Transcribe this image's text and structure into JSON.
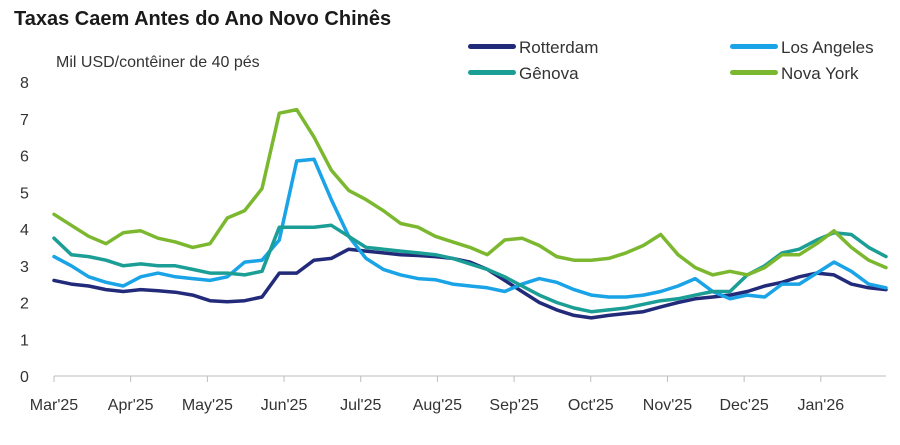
{
  "chart_data": {
    "type": "line",
    "title": "Taxas Caem Antes do Ano Novo Chinês",
    "ylabel": "Mil USD/contêiner de 40 pés",
    "xlabel": "",
    "ylim": [
      0,
      8
    ],
    "yticks": [
      "0",
      "1",
      "2",
      "3",
      "4",
      "5",
      "6",
      "7",
      "8"
    ],
    "xticks": [
      "Mar'25",
      "Apr'25",
      "May'25",
      "Jun'25",
      "Jul'25",
      "Aug'25",
      "Sep'25",
      "Oct'25",
      "Nov'25",
      "Dec'25",
      "Jan'26"
    ],
    "legend_position": "top-right",
    "x": [
      0,
      1,
      2,
      3,
      4,
      5,
      6,
      7,
      8,
      9,
      10,
      11,
      12,
      13,
      14,
      15,
      16,
      17,
      18,
      19,
      20,
      21,
      22,
      23,
      24,
      25,
      26,
      27,
      28,
      29,
      30,
      31,
      32,
      33,
      34,
      35,
      36,
      37,
      38,
      39,
      40,
      41,
      42,
      43,
      44,
      45,
      46,
      47,
      48
    ],
    "series": [
      {
        "name": "Rotterdam",
        "color": "#222a7a",
        "values": [
          2.6,
          2.5,
          2.45,
          2.35,
          2.3,
          2.35,
          2.32,
          2.28,
          2.2,
          2.05,
          2.02,
          2.05,
          2.15,
          2.8,
          2.8,
          3.15,
          3.2,
          3.45,
          3.4,
          3.35,
          3.3,
          3.28,
          3.25,
          3.2,
          3.1,
          2.9,
          2.6,
          2.3,
          2.0,
          1.8,
          1.65,
          1.58,
          1.65,
          1.7,
          1.75,
          1.88,
          2.0,
          2.1,
          2.15,
          2.2,
          2.3,
          2.45,
          2.55,
          2.7,
          2.8,
          2.75,
          2.5,
          2.4,
          2.35
        ]
      },
      {
        "name": "Los Angeles",
        "color": "#1aa3e6",
        "values": [
          3.25,
          3.0,
          2.7,
          2.55,
          2.45,
          2.7,
          2.8,
          2.7,
          2.65,
          2.6,
          2.7,
          3.1,
          3.15,
          3.7,
          5.85,
          5.9,
          4.8,
          3.8,
          3.2,
          2.9,
          2.75,
          2.65,
          2.62,
          2.5,
          2.45,
          2.4,
          2.3,
          2.5,
          2.65,
          2.55,
          2.35,
          2.2,
          2.15,
          2.15,
          2.2,
          2.3,
          2.45,
          2.65,
          2.3,
          2.1,
          2.2,
          2.15,
          2.5,
          2.5,
          2.8,
          3.1,
          2.85,
          2.5,
          2.4
        ]
      },
      {
        "name": "Gênova",
        "color": "#1b9e95",
        "values": [
          3.75,
          3.3,
          3.25,
          3.15,
          3.0,
          3.05,
          3.0,
          3.0,
          2.9,
          2.8,
          2.8,
          2.75,
          2.85,
          4.05,
          4.05,
          4.05,
          4.1,
          3.8,
          3.5,
          3.45,
          3.4,
          3.35,
          3.3,
          3.2,
          3.05,
          2.9,
          2.7,
          2.45,
          2.2,
          2.0,
          1.85,
          1.75,
          1.8,
          1.85,
          1.95,
          2.05,
          2.1,
          2.2,
          2.3,
          2.3,
          2.75,
          3.0,
          3.35,
          3.45,
          3.7,
          3.9,
          3.85,
          3.5,
          3.25
        ]
      },
      {
        "name": "Nova York",
        "color": "#7cb82f",
        "values": [
          4.4,
          4.1,
          3.8,
          3.6,
          3.9,
          3.95,
          3.75,
          3.65,
          3.5,
          3.6,
          4.3,
          4.5,
          5.1,
          7.15,
          7.25,
          6.5,
          5.6,
          5.05,
          4.8,
          4.5,
          4.15,
          4.05,
          3.8,
          3.65,
          3.5,
          3.3,
          3.7,
          3.75,
          3.55,
          3.25,
          3.15,
          3.15,
          3.2,
          3.35,
          3.55,
          3.85,
          3.3,
          2.95,
          2.75,
          2.85,
          2.75,
          2.95,
          3.3,
          3.3,
          3.6,
          3.95,
          3.5,
          3.15,
          2.95
        ]
      }
    ]
  }
}
